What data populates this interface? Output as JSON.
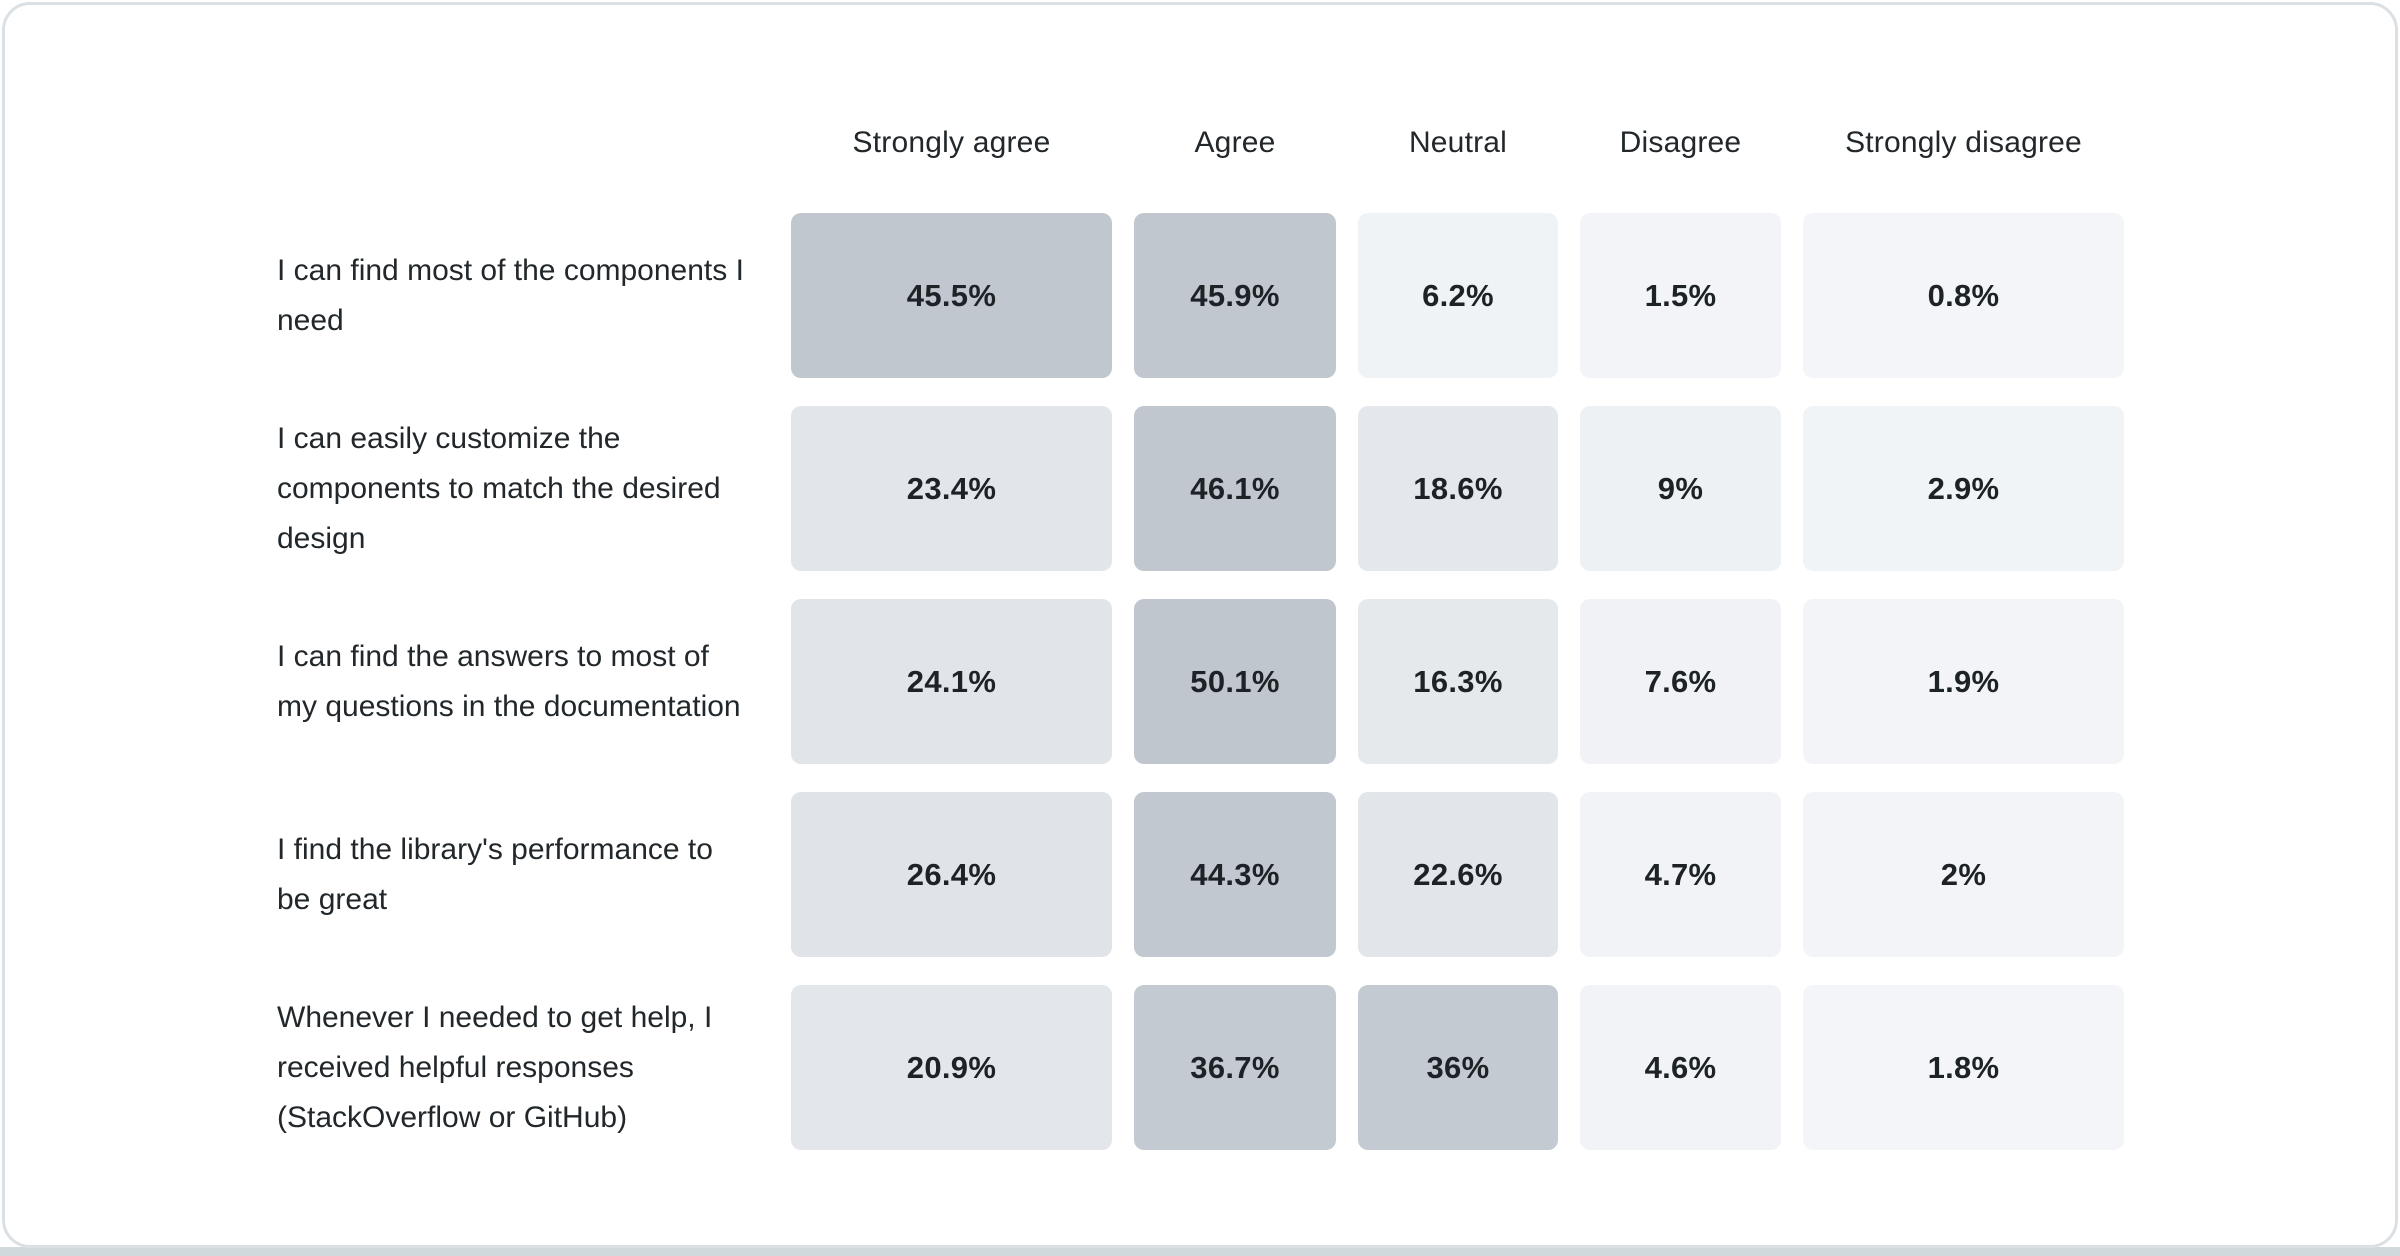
{
  "colors": {
    "card_bg": "#ffffff",
    "card_border": "#dbe0e4",
    "bottom_bar": "#d2d9dd",
    "text": "#21272a",
    "heat_min_color": "#f3f5f8",
    "heat_max_color": "#bfc6ce"
  },
  "chart_data": {
    "type": "heatmap",
    "unit": "%",
    "legend_position": "none",
    "grid": false,
    "value_domain": [
      0,
      50.1
    ],
    "columns": [
      "Strongly agree",
      "Agree",
      "Neutral",
      "Disagree",
      "Strongly disagree"
    ],
    "rows": [
      {
        "label": "I can find most of the components I need",
        "values": [
          45.5,
          45.9,
          6.2,
          1.5,
          0.8
        ],
        "cells": [
          {
            "text": "45.5%",
            "color": "#c1c7cf"
          },
          {
            "text": "45.9%",
            "color": "#c1c7cf"
          },
          {
            "text": "6.2%",
            "color": "#f0f3f6"
          },
          {
            "text": "1.5%",
            "color": "#f2f4f7"
          },
          {
            "text": "0.8%",
            "color": "#f3f5f8"
          }
        ]
      },
      {
        "label": "I can easily customize the components to match the desired design",
        "values": [
          23.4,
          46.1,
          18.6,
          9,
          2.9
        ],
        "cells": [
          {
            "text": "23.4%",
            "color": "#e2e5e9"
          },
          {
            "text": "46.1%",
            "color": "#c0c7cf"
          },
          {
            "text": "18.6%",
            "color": "#e4e7eb"
          },
          {
            "text": "9%",
            "color": "#eef1f4"
          },
          {
            "text": "2.9%",
            "color": "#f1f4f6"
          }
        ]
      },
      {
        "label": "I can find the answers to most of my questions in the documentation",
        "values": [
          24.1,
          50.1,
          16.3,
          7.6,
          1.9
        ],
        "cells": [
          {
            "text": "24.1%",
            "color": "#e1e4e9"
          },
          {
            "text": "50.1%",
            "color": "#bfc6ce"
          },
          {
            "text": "16.3%",
            "color": "#e6e9ec"
          },
          {
            "text": "7.6%",
            "color": "#f0f2f5"
          },
          {
            "text": "1.9%",
            "color": "#f2f4f7"
          }
        ]
      },
      {
        "label": "I find the library's performance to be great",
        "values": [
          26.4,
          44.3,
          22.6,
          4.7,
          2
        ],
        "cells": [
          {
            "text": "26.4%",
            "color": "#e0e4e8"
          },
          {
            "text": "44.3%",
            "color": "#c2c8d0"
          },
          {
            "text": "22.6%",
            "color": "#e2e5e9"
          },
          {
            "text": "4.7%",
            "color": "#f1f3f6"
          },
          {
            "text": "2%",
            "color": "#f2f4f7"
          }
        ]
      },
      {
        "label": "Whenever I needed to get help, I received helpful responses (StackOverflow or GitHub)",
        "values": [
          20.9,
          36.7,
          36,
          4.6,
          1.8
        ],
        "cells": [
          {
            "text": "20.9%",
            "color": "#e3e6ea"
          },
          {
            "text": "36.7%",
            "color": "#c4cad2"
          },
          {
            "text": "36%",
            "color": "#c4cad2"
          },
          {
            "text": "4.6%",
            "color": "#f1f3f6"
          },
          {
            "text": "1.8%",
            "color": "#f3f5f8"
          }
        ]
      }
    ]
  }
}
